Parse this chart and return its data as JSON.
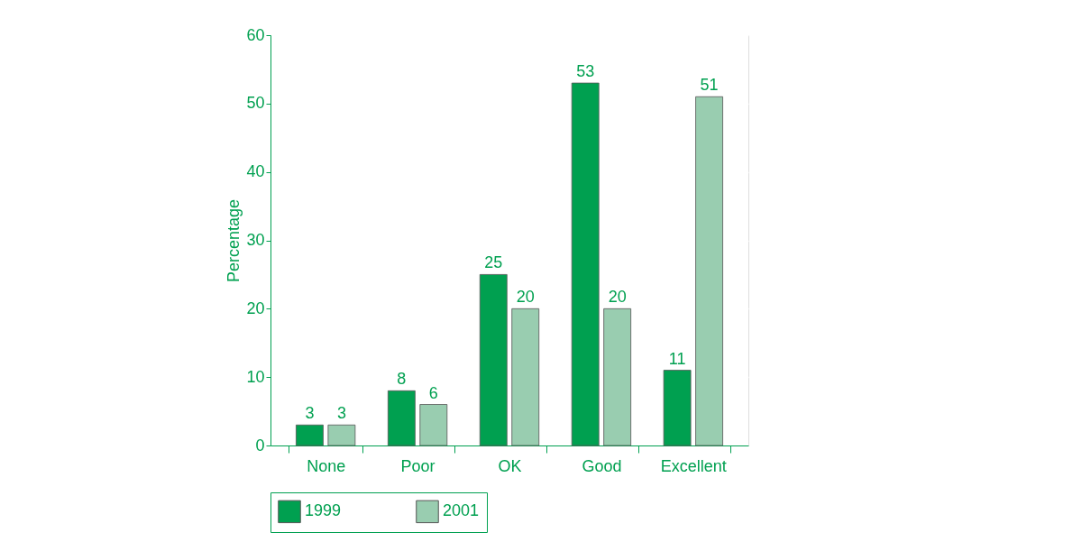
{
  "chart_data": {
    "type": "bar",
    "ylabel": "Percentage",
    "categories": [
      "None",
      "Poor",
      "OK",
      "Good",
      "Excellent"
    ],
    "series": [
      {
        "name": "1999",
        "color": "#00a050",
        "values": [
          3,
          8,
          25,
          53,
          11
        ]
      },
      {
        "name": "2001",
        "color": "#99cdb0",
        "values": [
          3,
          6,
          20,
          20,
          51
        ]
      }
    ],
    "ylim": [
      0,
      60
    ],
    "yticks": [
      0,
      10,
      20,
      30,
      40,
      50,
      60
    ],
    "grid": "y",
    "legend": "bottom",
    "data_labels": true
  }
}
